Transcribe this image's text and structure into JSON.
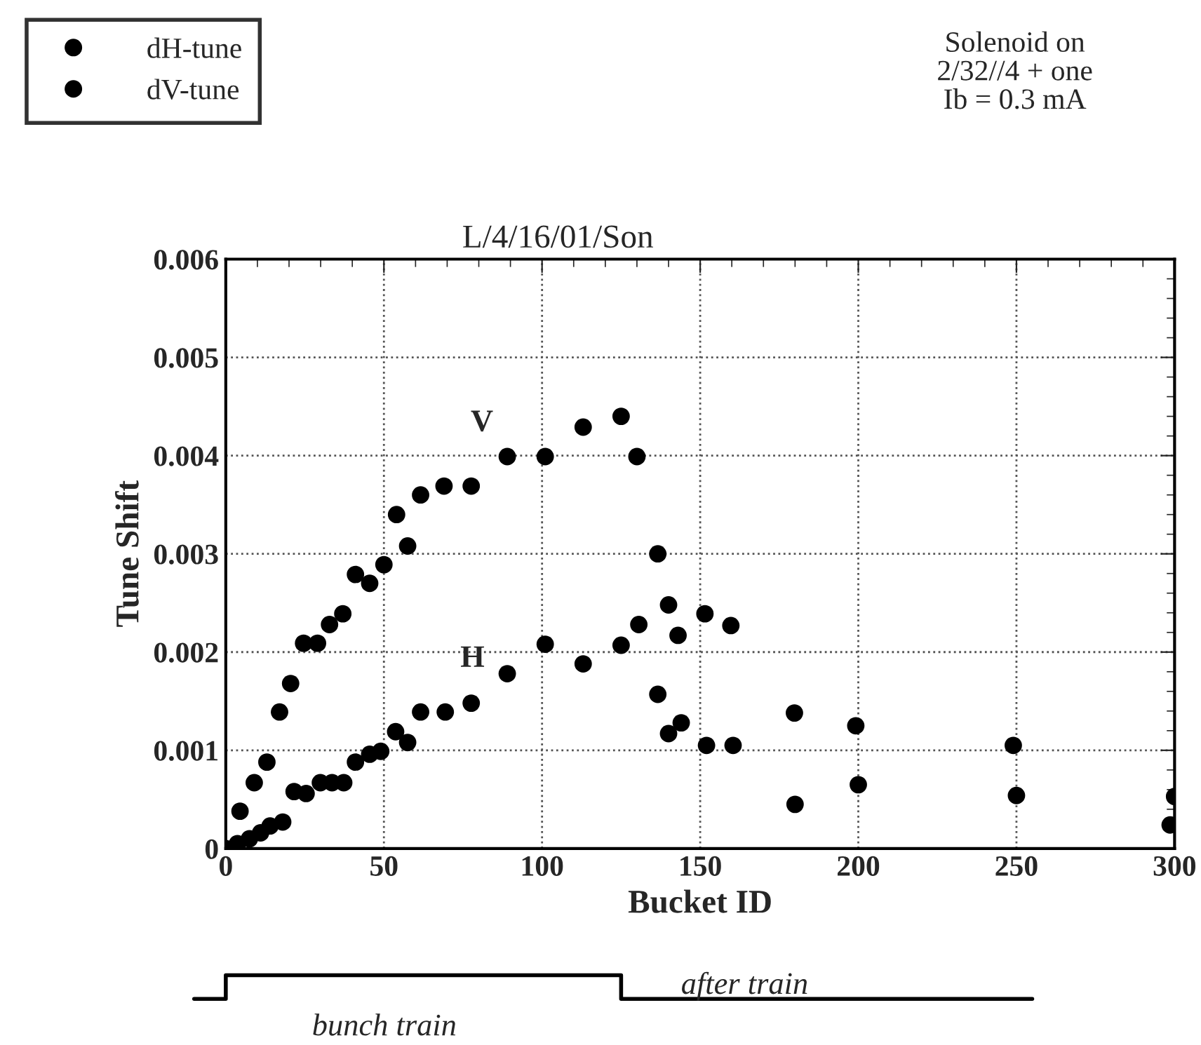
{
  "chart_data": {
    "type": "scatter",
    "title": "L/4/16/01/Son",
    "xlabel": "Bucket ID",
    "ylabel": "Tune Shift",
    "xlim": [
      0,
      300
    ],
    "xticks": [
      0,
      50,
      100,
      150,
      200,
      250,
      300
    ],
    "ylim": [
      0,
      0.006
    ],
    "yticks": [
      0,
      0.001,
      0.002,
      0.003,
      0.004,
      0.005,
      0.006
    ],
    "grid": true,
    "legend": "top left",
    "marker": "circle",
    "series": [
      {
        "name": "dH-tune",
        "color": "#000000",
        "x": [
          0,
          4.5,
          9,
          13,
          17,
          20.5,
          24.6,
          29,
          32.8,
          37,
          41,
          45.5,
          50,
          54,
          57.5,
          61.6,
          69,
          77.6,
          89,
          101,
          113,
          125,
          130,
          136.6,
          140,
          143,
          151.5,
          159.7,
          179.8,
          199.2,
          249,
          300
        ],
        "values": [
          0,
          0.00038,
          0.00067,
          0.00088,
          0.00139,
          0.00168,
          0.00209,
          0.00209,
          0.00228,
          0.00239,
          0.00279,
          0.0027,
          0.00289,
          0.0034,
          0.00308,
          0.0036,
          0.00369,
          0.00369,
          0.00399,
          0.00399,
          0.00429,
          0.0044,
          0.00399,
          0.003,
          0.00248,
          0.00217,
          0.00239,
          0.00227,
          0.00138,
          0.00125,
          0.00105,
          0.00053
        ]
      },
      {
        "name": "dV-tune",
        "color": "#000000",
        "x": [
          3.7,
          7.5,
          11,
          14,
          18,
          21.6,
          25.4,
          29.9,
          33.6,
          37.3,
          41,
          45.5,
          49,
          53.7,
          57.5,
          61.6,
          69.4,
          77.6,
          89,
          101,
          113,
          125,
          130.6,
          136.6,
          140,
          144,
          152,
          160.4,
          180,
          200,
          250,
          298.6
        ],
        "values": [
          5e-05,
          0.0001,
          0.00016,
          0.00023,
          0.00027,
          0.00058,
          0.00056,
          0.00067,
          0.00067,
          0.00067,
          0.00088,
          0.00096,
          0.00099,
          0.00119,
          0.00108,
          0.00139,
          0.00139,
          0.00148,
          0.00178,
          0.00208,
          0.00188,
          0.00207,
          0.00228,
          0.00157,
          0.00117,
          0.00128,
          0.00105,
          0.00105,
          0.00045,
          0.00065,
          0.00054,
          0.00024
        ]
      }
    ],
    "annotations": [
      "V",
      "H",
      "Solenoid on\n2/32//4 + one\nIb = 0.3 mA",
      "bunch train",
      "after train"
    ]
  }
}
